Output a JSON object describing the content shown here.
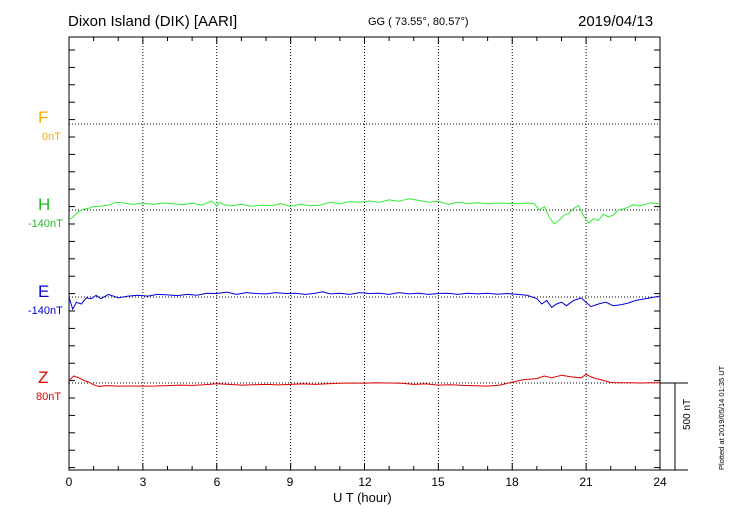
{
  "header": {
    "title": "Dixon Island (DIK)  [AARI]",
    "coords": "GG ( 73.55°,  80.57°)",
    "date": "2019/04/13"
  },
  "footer": {
    "plotted": "Plotted at 2019/05/14 01:35 UT",
    "scale_label": "500 nT"
  },
  "chart_data": {
    "type": "line",
    "xlabel": "U T (hour)",
    "xlim": [
      0,
      24
    ],
    "xticks": [
      "0",
      "3",
      "6",
      "9",
      "12",
      "15",
      "18",
      "21",
      "24"
    ],
    "grid": true,
    "scale_bar_nT": 500,
    "series": [
      {
        "name": "F",
        "baseline": "0nT",
        "color": "#ffaa00",
        "x": [],
        "values": []
      },
      {
        "name": "H",
        "baseline": "-140nT",
        "color": "#33ee33",
        "x": [
          0,
          0.2,
          0.4,
          0.6,
          0.8,
          1.0,
          1.3,
          1.6,
          1.9,
          2.2,
          2.6,
          3.0,
          3.4,
          3.8,
          4.2,
          4.6,
          5.0,
          5.4,
          5.8,
          6.0,
          6.1,
          6.3,
          6.6,
          7.0,
          7.4,
          7.8,
          8.2,
          8.6,
          9.0,
          9.4,
          9.8,
          10.2,
          10.6,
          11.0,
          11.4,
          11.8,
          12.2,
          12.6,
          13.0,
          13.4,
          13.8,
          14.2,
          14.6,
          15.0,
          15.4,
          15.8,
          16.2,
          16.6,
          17.0,
          17.4,
          17.8,
          18.2,
          18.6,
          18.9,
          19.1,
          19.3,
          19.5,
          19.7,
          19.9,
          20.1,
          20.3,
          20.5,
          20.7,
          20.9,
          21.1,
          21.3,
          21.5,
          21.7,
          21.9,
          22.1,
          22.3,
          22.6,
          22.9,
          23.2,
          23.6,
          24.0
        ],
        "values": [
          -200,
          -175,
          -150,
          -135,
          -130,
          -120,
          -118,
          -112,
          -95,
          -100,
          -108,
          -100,
          -108,
          -100,
          -104,
          -110,
          -100,
          -112,
          -88,
          -118,
          -95,
          -110,
          -115,
          -108,
          -118,
          -112,
          -115,
          -104,
          -118,
          -108,
          -115,
          -112,
          -96,
          -104,
          -92,
          -95,
          -88,
          -96,
          -82,
          -90,
          -75,
          -85,
          -95,
          -90,
          -108,
          -95,
          -104,
          -98,
          -104,
          -100,
          -102,
          -104,
          -100,
          -105,
          -140,
          -120,
          -180,
          -220,
          -200,
          -170,
          -160,
          -130,
          -115,
          -175,
          -215,
          -190,
          -200,
          -165,
          -180,
          -170,
          -140,
          -130,
          -110,
          -115,
          -100,
          -104
        ]
      },
      {
        "name": "E",
        "baseline": "-140nT",
        "color": "#0000dd",
        "x": [
          0,
          0.15,
          0.3,
          0.5,
          0.7,
          0.9,
          1.1,
          1.3,
          1.6,
          2.0,
          2.4,
          2.8,
          3.2,
          3.6,
          4.0,
          4.4,
          4.8,
          5.2,
          5.6,
          6.0,
          6.4,
          6.8,
          7.2,
          7.6,
          8.0,
          8.4,
          8.8,
          9.2,
          9.6,
          10.0,
          10.3,
          10.6,
          11.0,
          11.4,
          11.8,
          12.2,
          12.6,
          13.0,
          13.4,
          13.8,
          14.2,
          14.6,
          15.0,
          15.4,
          15.8,
          16.2,
          16.6,
          17.0,
          17.4,
          17.8,
          18.2,
          18.6,
          19.0,
          19.2,
          19.4,
          19.6,
          19.8,
          20.0,
          20.2,
          20.5,
          20.8,
          21.0,
          21.2,
          21.5,
          21.8,
          22.1,
          22.4,
          22.7,
          23.0,
          23.4,
          23.8,
          24.0
        ],
        "values": [
          -140,
          -210,
          -170,
          -180,
          -145,
          -150,
          -130,
          -150,
          -125,
          -145,
          -135,
          -130,
          -135,
          -125,
          -128,
          -132,
          -125,
          -130,
          -118,
          -120,
          -112,
          -125,
          -115,
          -120,
          -122,
          -115,
          -120,
          -118,
          -125,
          -118,
          -110,
          -122,
          -118,
          -125,
          -115,
          -120,
          -118,
          -125,
          -115,
          -122,
          -118,
          -125,
          -120,
          -118,
          -125,
          -118,
          -122,
          -118,
          -124,
          -120,
          -125,
          -130,
          -150,
          -180,
          -160,
          -200,
          -180,
          -170,
          -190,
          -160,
          -145,
          -170,
          -195,
          -180,
          -170,
          -190,
          -185,
          -175,
          -160,
          -150,
          -140,
          -135
        ]
      },
      {
        "name": "Z",
        "baseline": "80nT",
        "color": "#dd0000",
        "x": [
          0,
          0.2,
          0.4,
          0.6,
          0.8,
          1.0,
          1.2,
          1.5,
          2.0,
          2.5,
          3.0,
          3.5,
          4.0,
          4.5,
          5.0,
          5.5,
          6.0,
          6.5,
          7.0,
          7.5,
          8.0,
          8.5,
          9.0,
          9.5,
          10.0,
          10.5,
          11.0,
          11.5,
          12.0,
          12.5,
          13.0,
          13.5,
          14.0,
          14.5,
          15.0,
          15.5,
          16.0,
          16.5,
          17.0,
          17.5,
          18.0,
          18.5,
          19.0,
          19.3,
          19.6,
          20.0,
          20.4,
          20.8,
          21.0,
          21.2,
          21.4,
          21.7,
          22.0,
          22.4,
          22.8,
          23.2,
          23.6,
          24.0
        ],
        "values": [
          95,
          120,
          110,
          95,
          85,
          70,
          60,
          65,
          62,
          63,
          62,
          63,
          65,
          68,
          66,
          70,
          76,
          72,
          68,
          70,
          72,
          69,
          72,
          75,
          72,
          76,
          78,
          80,
          79,
          81,
          80,
          78,
          72,
          75,
          68,
          70,
          66,
          64,
          62,
          68,
          85,
          100,
          105,
          120,
          110,
          125,
          115,
          110,
          130,
          115,
          105,
          95,
          83,
          82,
          81,
          80,
          82,
          81
        ]
      }
    ]
  }
}
